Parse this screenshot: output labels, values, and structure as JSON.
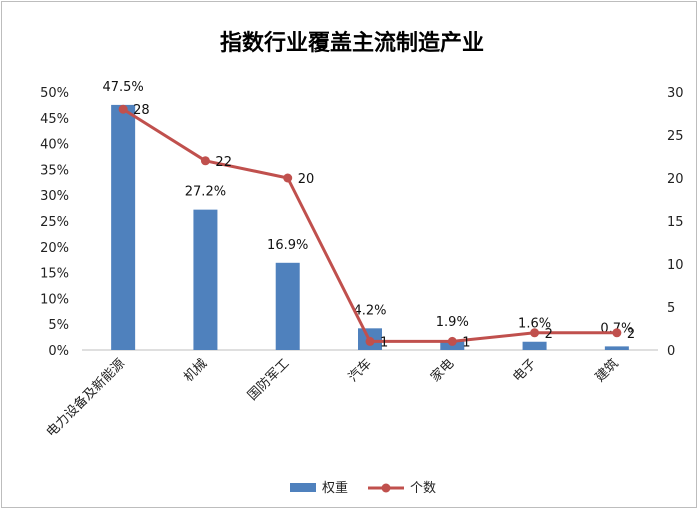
{
  "chart_data": {
    "type": "bar",
    "title": "指数行业覆盖主流制造产业",
    "categories": [
      "电力设备及新能源",
      "机械",
      "国防军工",
      "汽车",
      "家电",
      "电子",
      "建筑"
    ],
    "series": [
      {
        "name": "权重",
        "type": "bar",
        "axis": "left",
        "color": "#4f81bd",
        "values": [
          47.5,
          27.2,
          16.9,
          4.2,
          1.9,
          1.6,
          0.7
        ],
        "labels": [
          "47.5%",
          "27.2%",
          "16.9%",
          "4.2%",
          "1.9%",
          "1.6%",
          "0.7%"
        ]
      },
      {
        "name": "个数",
        "type": "line",
        "axis": "right",
        "color": "#c0504d",
        "values": [
          28,
          22,
          20,
          1,
          1,
          2,
          2
        ],
        "labels": [
          "28",
          "22",
          "20",
          "1",
          "1",
          "2",
          "2"
        ]
      }
    ],
    "y_left": {
      "ylim": [
        0,
        50
      ],
      "ticks": [
        "0%",
        "5%",
        "10%",
        "15%",
        "20%",
        "25%",
        "30%",
        "35%",
        "40%",
        "45%",
        "50%"
      ]
    },
    "y_right": {
      "ylim": [
        0,
        30
      ],
      "ticks": [
        "0",
        "5",
        "10",
        "15",
        "20",
        "25",
        "30"
      ]
    },
    "grid": false,
    "legend": "bottom"
  }
}
